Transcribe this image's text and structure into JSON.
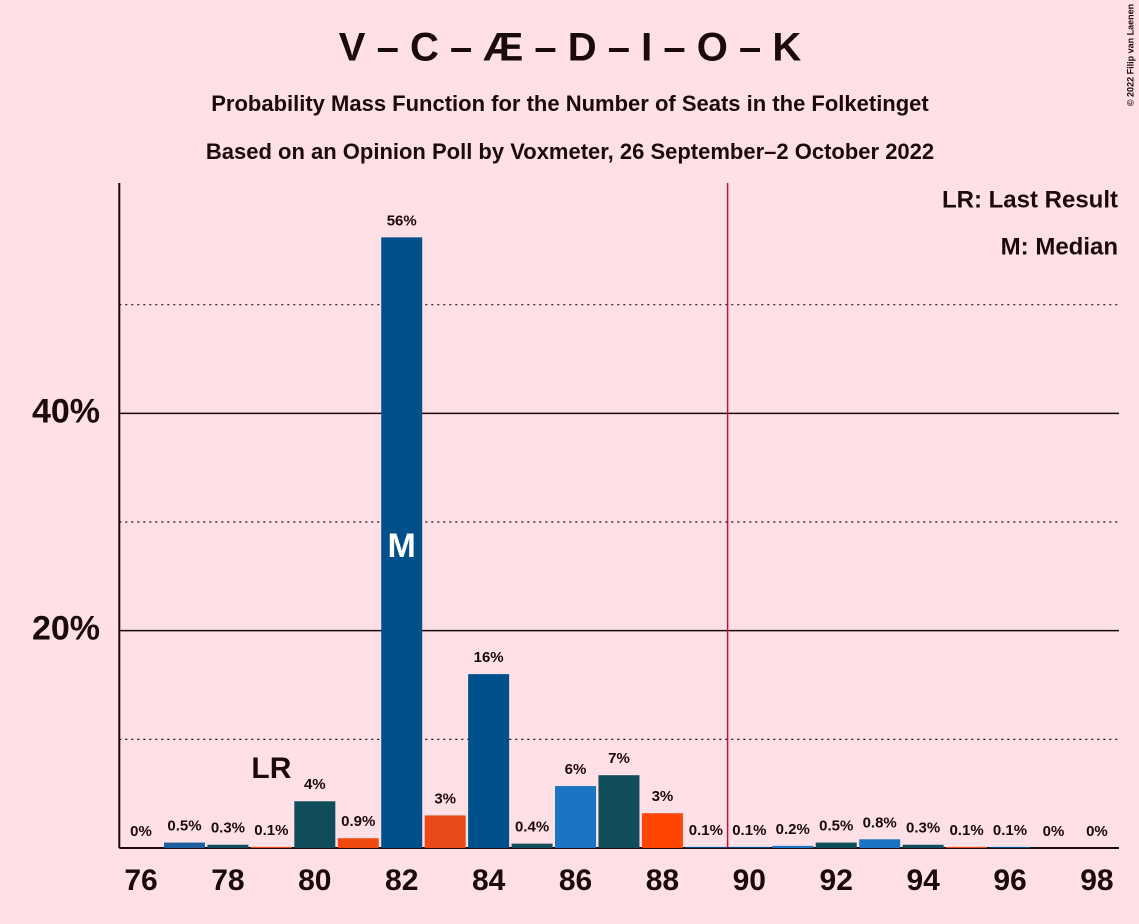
{
  "chart_data": {
    "type": "bar",
    "title": "V – C – Æ – D – I – O – K",
    "subtitle": "Probability Mass Function for the Number of Seats in the Folketinget",
    "subtitle2": "Based on an Opinion Poll by Voxmeter, 26 September–2 October 2022",
    "copyright": "© 2022 Filip van Laenen",
    "legend": [
      "LR: Last Result",
      "M: Median"
    ],
    "last_result": 79,
    "last_result_label": "LR",
    "median": 82,
    "median_label": "M",
    "majority_line_before": 90,
    "categories": [
      76,
      null,
      78,
      null,
      80,
      null,
      82,
      null,
      84,
      null,
      86,
      null,
      88,
      null,
      90,
      null,
      92,
      null,
      94,
      null,
      96,
      null,
      98
    ],
    "values": [
      0,
      0.5,
      0.3,
      0.1,
      4.3,
      0.9,
      56.2,
      3.0,
      16.0,
      0.4,
      5.7,
      6.7,
      3.2,
      0.1,
      0.1,
      0.2,
      0.5,
      0.8,
      0.3,
      0.1,
      0.1,
      0,
      0
    ],
    "value_labels": [
      "0%",
      "0.5%",
      "0.3%",
      "0.1%",
      "4%",
      "0.9%",
      "56%",
      "3%",
      "16%",
      "0.4%",
      "6%",
      "7%",
      "3%",
      "0.1%",
      "0.1%",
      "0.2%",
      "0.5%",
      "0.8%",
      "0.3%",
      "0.1%",
      "0.1%",
      "0%",
      "0%"
    ],
    "colors": [
      "#00508c",
      "#1f5fa0",
      "#0f4d5a",
      "#e84a1c",
      "#0f4d5a",
      "#f04a10",
      "#00508c",
      "#e84a1c",
      "#00508c",
      "#0f4d5a",
      "#1a75c4",
      "#0f4d5a",
      "#ff4500",
      "#00508c",
      "#00508c",
      "#1a75c4",
      "#0f4d5a",
      "#1a75c4",
      "#0f4d5a",
      "#e84a1c",
      "#00508c",
      "#0f4d5a",
      "#00508c"
    ],
    "ylim": [
      0,
      61.2
    ],
    "yticks": [
      {
        "value": 20,
        "label": "20%"
      },
      {
        "value": 40,
        "label": "40%"
      }
    ],
    "minor_yticks": [
      10,
      30,
      50
    ],
    "grid": true
  }
}
